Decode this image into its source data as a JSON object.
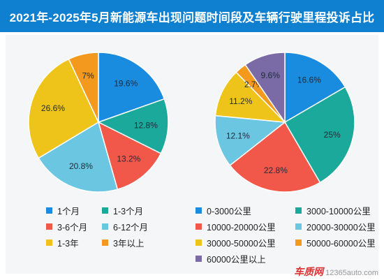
{
  "title": "2021年-2025年5月新能源车出现问题时间段及车辆行驶里程投诉占比",
  "colors": {
    "header_bg": "#0f7fd0",
    "panel_bg": "#f4f6f8"
  },
  "chart_data": [
    {
      "type": "pie",
      "title": "",
      "series": [
        {
          "name": "1个月",
          "value": 19.6,
          "label": "19.6%",
          "color": "#1a8ce0"
        },
        {
          "name": "1-3个月",
          "value": 12.8,
          "label": "12.8%",
          "color": "#1aa99a"
        },
        {
          "name": "3-6个月",
          "value": 13.2,
          "label": "13.2%",
          "color": "#f2584a"
        },
        {
          "name": "6-12个月",
          "value": 20.8,
          "label": "20.8%",
          "color": "#6bc6e2"
        },
        {
          "name": "1-3年",
          "value": 26.6,
          "label": "26.6%",
          "color": "#eec41a"
        },
        {
          "name": "3年以上",
          "value": 7.0,
          "label": "7%",
          "color": "#f39a1e"
        }
      ],
      "legend_placement": "bottom"
    },
    {
      "type": "pie",
      "title": "",
      "series": [
        {
          "name": "0-3000公里",
          "value": 16.6,
          "label": "16.6%",
          "color": "#1a8ce0"
        },
        {
          "name": "3000-10000公里",
          "value": 25.0,
          "label": "25%",
          "color": "#1aa99a"
        },
        {
          "name": "10000-20000公里",
          "value": 22.8,
          "label": "22.8%",
          "color": "#f2584a"
        },
        {
          "name": "20000-30000公里",
          "value": 12.1,
          "label": "12.1%",
          "color": "#6bc6e2"
        },
        {
          "name": "30000-50000公里",
          "value": 11.2,
          "label": "11.2%",
          "color": "#eec41a"
        },
        {
          "name": "50000-60000公里",
          "value": 2.7,
          "label": "2.7%",
          "color": "#f39a1e"
        },
        {
          "name": "60000公里以上",
          "value": 9.6,
          "label": "9.6%",
          "color": "#7a6aa6"
        }
      ],
      "legend_placement": "bottom"
    }
  ],
  "watermark": {
    "logo": "车质网",
    "site": "12365auto.com"
  }
}
